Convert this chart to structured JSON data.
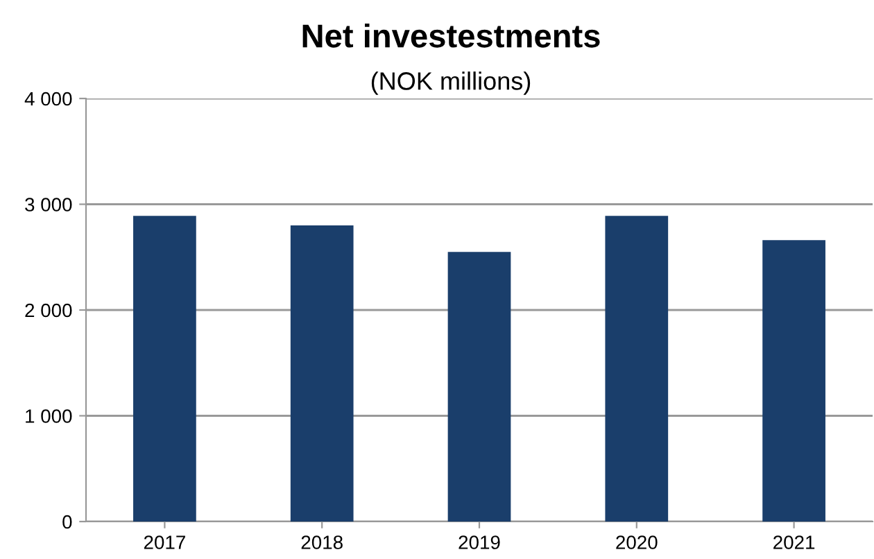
{
  "chart_data": {
    "type": "bar",
    "title": "Net investestments",
    "subtitle": "(NOK millions)",
    "categories": [
      "2017",
      "2018",
      "2019",
      "2020",
      "2021"
    ],
    "values": [
      2890,
      2800,
      2550,
      2890,
      2660
    ],
    "color": "#1a3e6b",
    "ylim": [
      0,
      4000
    ],
    "yticks": [
      0,
      {
        "value": 1000,
        "label": "1 000"
      },
      {
        "value": 2000,
        "label": "2 000"
      },
      {
        "value": 3000,
        "label": "3 000"
      },
      {
        "value": 4000,
        "label": "4 000"
      }
    ],
    "grid": "y",
    "legend": false
  }
}
